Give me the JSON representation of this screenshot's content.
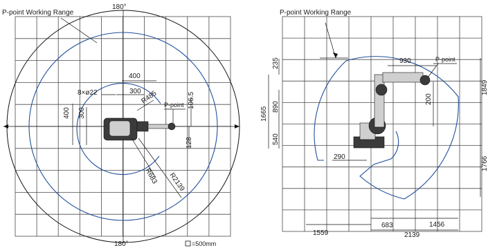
{
  "left_view": {
    "working_range_label": "P-point Working Range",
    "top_angle": "180°",
    "bottom_angle": "180°",
    "dim_400_top": "400",
    "dim_300_top": "300",
    "hole_label": "8×ø22",
    "r485": "R485",
    "p_point": "P-point",
    "dim_106_5": "106.5",
    "dim_400_left": "400",
    "dim_300_left": "300",
    "dim_128": "128",
    "r683": "R683",
    "r2139": "R2139"
  },
  "right_view": {
    "working_range_label": "P-point Working Range",
    "dim_235": "235",
    "dim_930": "930",
    "p_point": "P-point",
    "dim_890": "890",
    "dim_1665": "1665",
    "dim_200": "200",
    "dim_1849": "1849",
    "dim_540": "540",
    "dim_290": "290",
    "dim_1766": "1766",
    "dim_1559": "1559",
    "dim_683": "683",
    "dim_2139": "2139",
    "dim_1456": "1456"
  },
  "legend": {
    "scale_label": "=500mm"
  }
}
